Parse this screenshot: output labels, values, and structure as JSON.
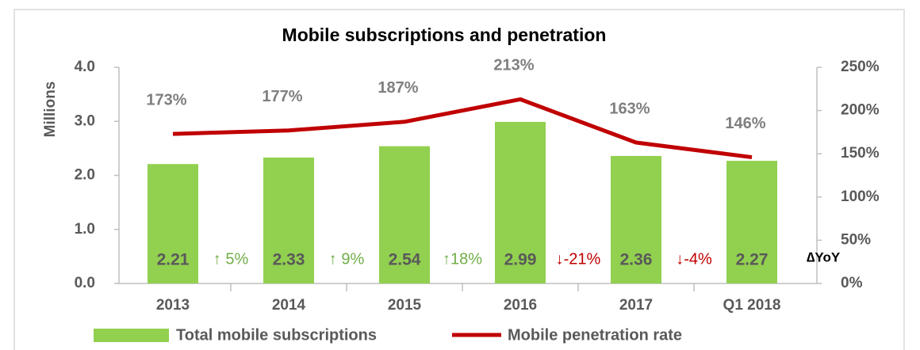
{
  "chart_data": {
    "type": "bar_line",
    "title": "Mobile subscriptions and penetration",
    "y_label": "Millions",
    "categories": [
      "2013",
      "2014",
      "2015",
      "2016",
      "2017",
      "Q1 2018"
    ],
    "series": [
      {
        "name": "Total mobile subscriptions",
        "type": "bar",
        "color": "#92d050",
        "values": [
          2.21,
          2.33,
          2.54,
          2.99,
          2.36,
          2.27
        ]
      },
      {
        "name": "Mobile penetration rate",
        "type": "line",
        "axis": "y2",
        "color": "#c00000",
        "values": [
          173,
          177,
          187,
          213,
          163,
          146
        ],
        "value_labels": [
          "173%",
          "177%",
          "187%",
          "213%",
          "163%",
          "146%"
        ]
      }
    ],
    "ylim": [
      0,
      4
    ],
    "yticks": [
      {
        "value": 0,
        "label": "0.0"
      },
      {
        "value": 1,
        "label": "1.0"
      },
      {
        "value": 2,
        "label": "2.0"
      },
      {
        "value": 3,
        "label": "3.0"
      },
      {
        "value": 4,
        "label": "4.0"
      }
    ],
    "y2lim": [
      0,
      250
    ],
    "y2ticks": [
      {
        "value": 0,
        "label": "0%"
      },
      {
        "value": 50,
        "label": "50%"
      },
      {
        "value": 100,
        "label": "100%"
      },
      {
        "value": 150,
        "label": "150%"
      },
      {
        "value": 200,
        "label": "200%"
      },
      {
        "value": 250,
        "label": "250%"
      }
    ],
    "annotations": [
      {
        "text": "↑ 5%",
        "color": "#70ad47"
      },
      {
        "text": "↑ 9%",
        "color": "#70ad47"
      },
      {
        "text": "↑18%",
        "color": "#70ad47"
      },
      {
        "text": "↓-21%",
        "color": "#c00000"
      },
      {
        "text": "↓-4%",
        "color": "#c00000"
      }
    ],
    "annotation_label": "∆YoY",
    "legend": "bottom"
  }
}
